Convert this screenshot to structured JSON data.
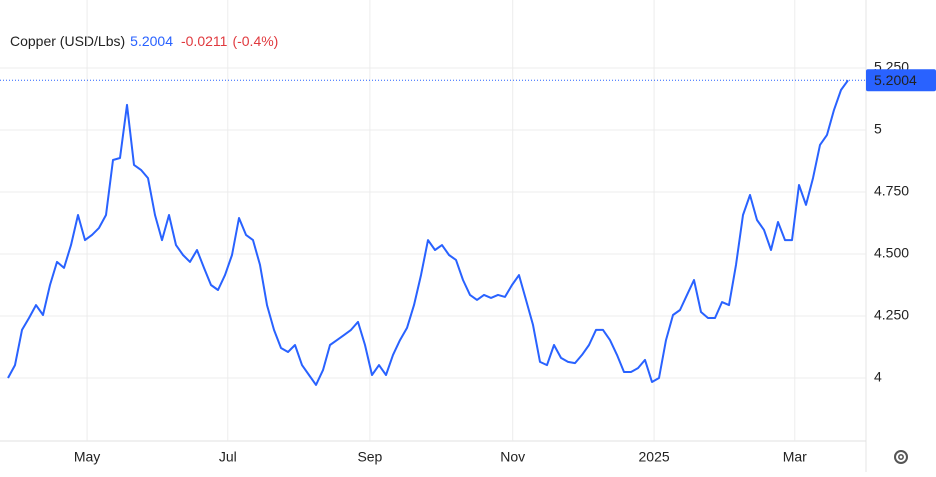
{
  "chart_data": {
    "type": "line",
    "title": "Copper (USD/Lbs)",
    "last": "5.2004",
    "change": "-0.0211",
    "change_pct": "(-0.4%)",
    "series": [
      {
        "name": "Copper",
        "color": "#2962ff",
        "values": [
          4.0,
          4.052,
          4.194,
          4.242,
          4.294,
          4.254,
          4.375,
          4.468,
          4.444,
          4.536,
          4.657,
          4.556,
          4.577,
          4.605,
          4.657,
          4.879,
          4.887,
          5.101,
          4.859,
          4.839,
          4.806,
          4.657,
          4.556,
          4.657,
          4.536,
          4.496,
          4.468,
          4.516,
          4.444,
          4.375,
          4.355,
          4.415,
          4.496,
          4.645,
          4.577,
          4.556,
          4.456,
          4.294,
          4.194,
          4.121,
          4.105,
          4.133,
          4.052,
          4.012,
          3.972,
          4.032,
          4.133,
          4.153,
          4.173,
          4.194,
          4.226,
          4.133,
          4.012,
          4.052,
          4.012,
          4.093,
          4.153,
          4.202,
          4.294,
          4.415,
          4.556,
          4.516,
          4.536,
          4.496,
          4.476,
          4.395,
          4.335,
          4.315,
          4.335,
          4.323,
          4.335,
          4.327,
          4.375,
          4.415,
          4.315,
          4.214,
          4.065,
          4.052,
          4.133,
          4.081,
          4.065,
          4.06,
          4.093,
          4.133,
          4.194,
          4.194,
          4.153,
          4.093,
          4.024,
          4.024,
          4.04,
          4.073,
          3.984,
          4.0,
          4.153,
          4.254,
          4.274,
          4.335,
          4.395,
          4.266,
          4.242,
          4.242,
          4.306,
          4.294,
          4.456,
          4.657,
          4.738,
          4.637,
          4.597,
          4.516,
          4.629,
          4.556,
          4.556,
          4.778,
          4.698,
          4.806,
          4.94,
          4.98,
          5.081,
          5.161,
          5.2004
        ]
      }
    ],
    "xlim": [
      0,
      123
    ],
    "xticks": [
      {
        "value": 11.3,
        "label": "May"
      },
      {
        "value": 31.4,
        "label": "Jul"
      },
      {
        "value": 51.7,
        "label": "Sep"
      },
      {
        "value": 72.1,
        "label": "Nov"
      },
      {
        "value": 92.3,
        "label": "2025"
      },
      {
        "value": 112.4,
        "label": "Mar"
      }
    ],
    "ylim": [
      3.746,
      5.52
    ],
    "yticks": [
      {
        "value": 4,
        "label": "4"
      },
      {
        "value": 4.25,
        "label": "4.250"
      },
      {
        "value": 4.5,
        "label": "4.500"
      },
      {
        "value": 4.75,
        "label": "4.750"
      },
      {
        "value": 5,
        "label": "5"
      },
      {
        "value": 5.25,
        "label": "5.250"
      }
    ],
    "grid": true
  }
}
